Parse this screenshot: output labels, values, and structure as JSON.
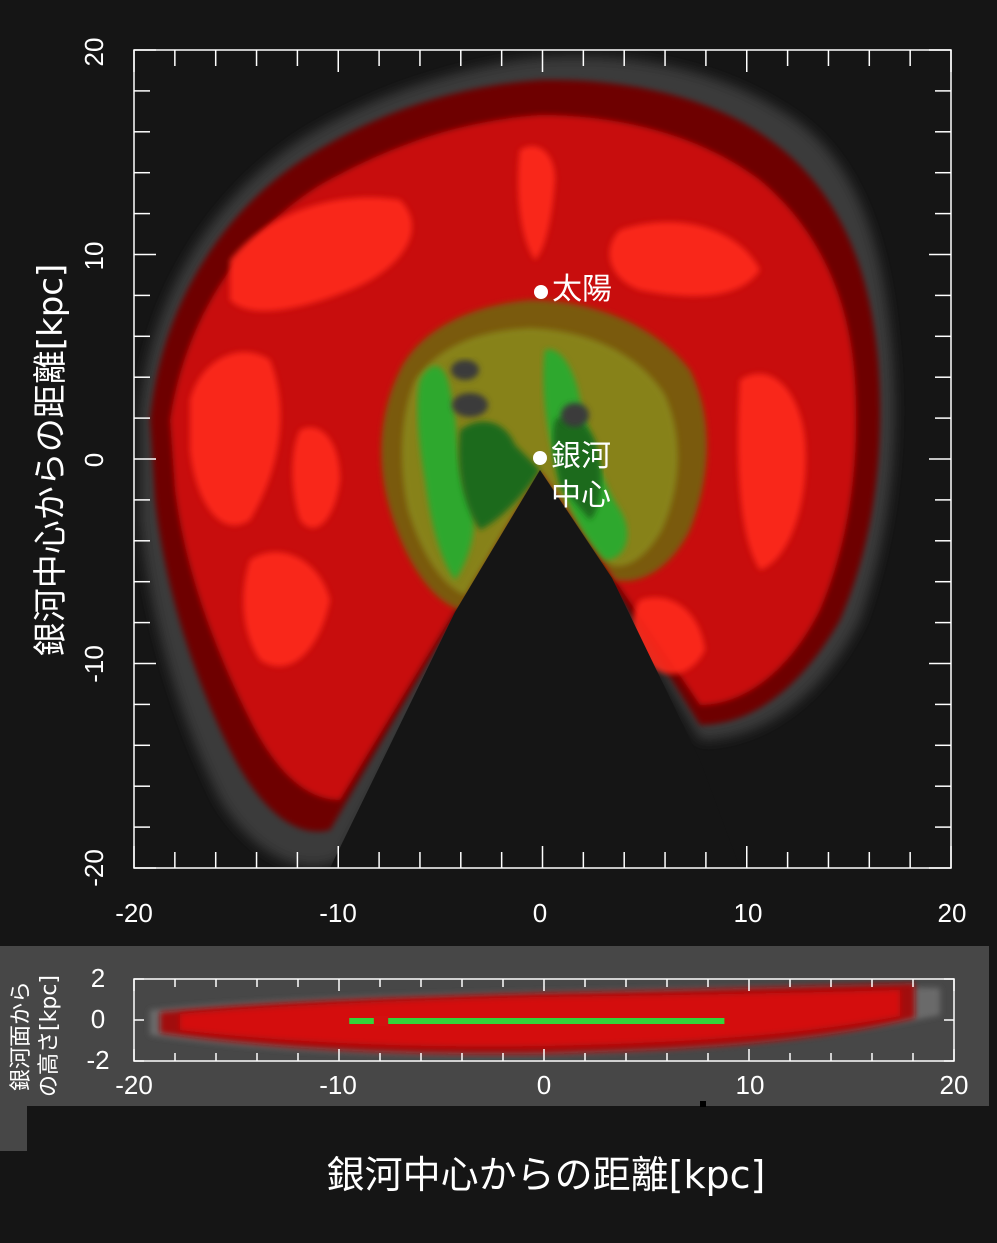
{
  "chart_data": [
    {
      "type": "heatmap",
      "view": "face-on",
      "xlabel": "",
      "ylabel": "銀河中心からの距離[kpc]",
      "xlim": [
        -20,
        20
      ],
      "ylim": [
        -20,
        20
      ],
      "xticks": [
        "-20",
        "-10",
        "0",
        "10",
        "20"
      ],
      "yticks": [
        "-20",
        "-10",
        "0",
        "10",
        "20"
      ],
      "grid": false,
      "colors": {
        "background": "#151515",
        "faint": "#3a3a3a",
        "low": "#6e0606",
        "mid": "#c80f0f",
        "high": "#ff2a1a",
        "brown": "#7a5a10",
        "olive": "#8a8a1a",
        "green": "#2fa82f",
        "dark_green": "#1d6b1d"
      },
      "annotations": [
        {
          "label": "太陽",
          "x": 0,
          "y": 8.2
        },
        {
          "label": "銀河",
          "label2": "中心",
          "x": 0,
          "y": 0
        }
      ]
    },
    {
      "type": "heatmap",
      "view": "edge-on",
      "xlabel": "銀河中心からの距離[kpc]",
      "ylabel_lines": [
        "銀河面から",
        "の高さ[kpc]"
      ],
      "xlim": [
        -20,
        20
      ],
      "ylim": [
        -2,
        2
      ],
      "xticks": [
        "-20",
        "-10",
        "0",
        "10",
        "20"
      ],
      "yticks": [
        "2",
        "0",
        "-2"
      ],
      "grid": false,
      "green_band": {
        "x_start": -9.5,
        "x_end": 8.8,
        "gap_start": -8.3,
        "gap_end": -7.6
      }
    }
  ]
}
